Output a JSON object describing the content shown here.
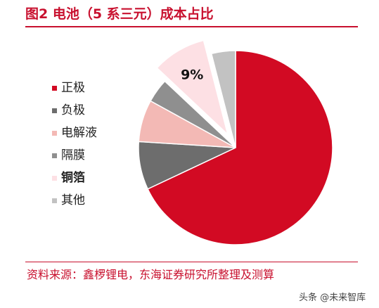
{
  "title": "图2  电池（5 系三元）成本占比",
  "source": "资料来源：鑫椤锂电，东海证券研究所整理及测算",
  "watermark": "头条 @未来智库",
  "chart_data": {
    "type": "pie",
    "title": "图2  电池（5 系三元）成本占比",
    "legend_position": "left",
    "slices": [
      {
        "name": "正极",
        "value": 68,
        "color": "#d20a23",
        "label": ""
      },
      {
        "name": "负极",
        "value": 8,
        "color": "#6d6d6d",
        "label": ""
      },
      {
        "name": "电解液",
        "value": 7,
        "color": "#f3b9b5",
        "label": ""
      },
      {
        "name": "隔膜",
        "value": 4,
        "color": "#8f8f8f",
        "label": ""
      },
      {
        "name": "铜箔",
        "value": 9,
        "color": "#fde0e4",
        "label": "9%",
        "exploded": true
      },
      {
        "name": "其他",
        "value": 4,
        "color": "#c2c2c2",
        "label": ""
      }
    ],
    "bold_legend_entry": "铜箔"
  }
}
